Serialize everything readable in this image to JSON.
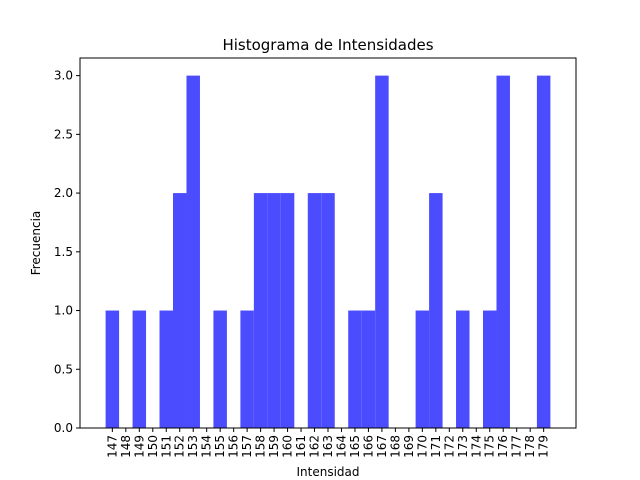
{
  "chart_data": {
    "type": "bar",
    "title": "Histograma de Intensidades",
    "xlabel": "Intensidad",
    "ylabel": "Frecuencia",
    "categories": [
      "147",
      "148",
      "149",
      "150",
      "151",
      "152",
      "153",
      "154",
      "155",
      "156",
      "157",
      "158",
      "159",
      "160",
      "161",
      "162",
      "163",
      "164",
      "165",
      "166",
      "167",
      "168",
      "169",
      "170",
      "171",
      "172",
      "173",
      "174",
      "175",
      "176",
      "177",
      "178",
      "179"
    ],
    "values": [
      1,
      0,
      1,
      0,
      1,
      2,
      3,
      0,
      1,
      0,
      1,
      2,
      2,
      2,
      0,
      2,
      2,
      0,
      1,
      1,
      3,
      0,
      0,
      1,
      2,
      0,
      1,
      0,
      1,
      3,
      0,
      0,
      3
    ],
    "ylim": [
      0,
      3.15
    ],
    "yticks": [
      0.0,
      0.5,
      1.0,
      1.5,
      2.0,
      2.5,
      3.0
    ],
    "ytick_labels": [
      "0.0",
      "0.5",
      "1.0",
      "1.5",
      "2.0",
      "2.5",
      "3.0"
    ],
    "bar_color": "#4c4cff",
    "grid": false
  }
}
